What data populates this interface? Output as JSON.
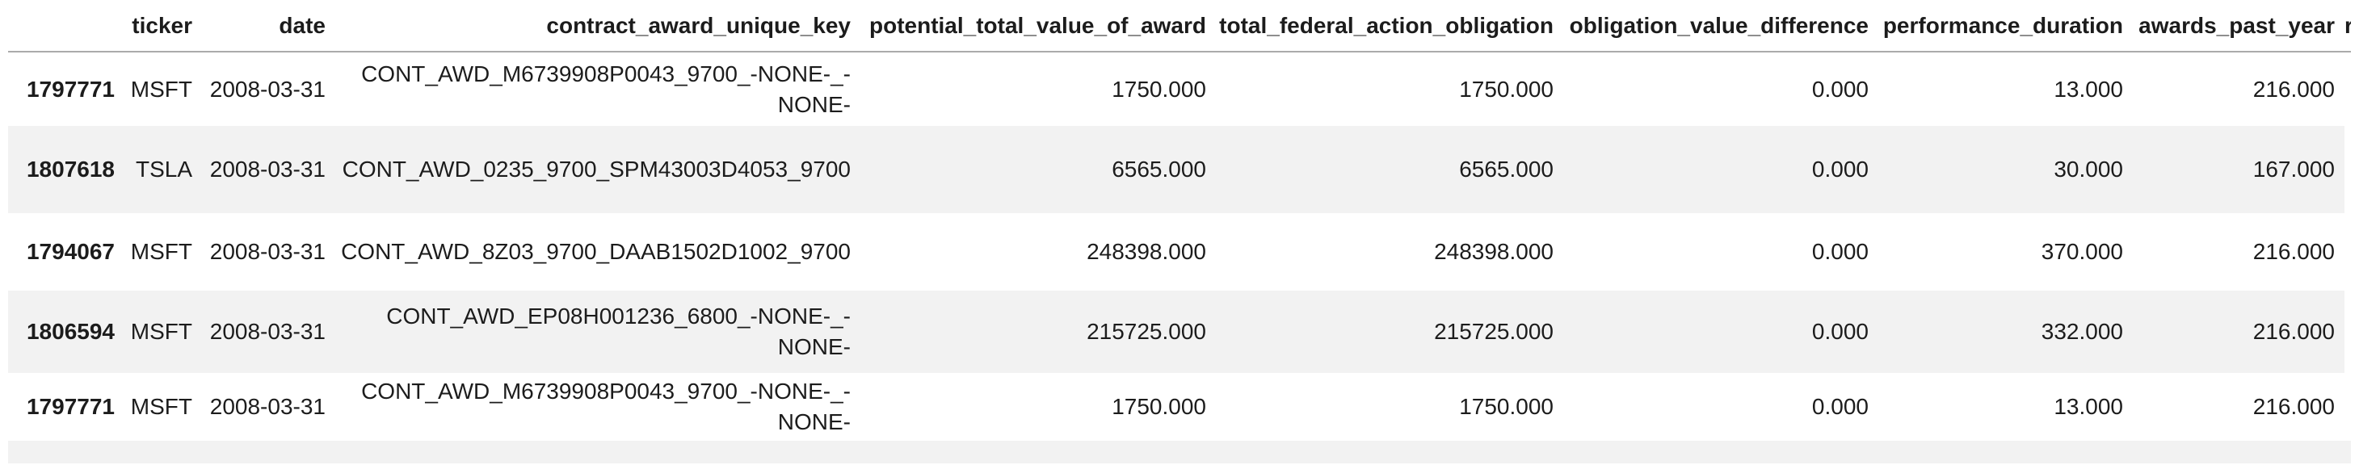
{
  "colors": {
    "background": "#ffffff",
    "stripe": "#f2f2f2",
    "header_border": "#ababab",
    "text": "#1c1c1c"
  },
  "table": {
    "columns": [
      {
        "id": "index",
        "label": ""
      },
      {
        "id": "ticker",
        "label": "ticker"
      },
      {
        "id": "date",
        "label": "date"
      },
      {
        "id": "contract_award_unique_key",
        "label": "contract_award_unique_key"
      },
      {
        "id": "potential_total_value_of_award",
        "label": "potential_total_value_of_award"
      },
      {
        "id": "total_federal_action_obligation",
        "label": "total_federal_action_obligation"
      },
      {
        "id": "obligation_value_difference",
        "label": "obligation_value_difference"
      },
      {
        "id": "performance_duration",
        "label": "performance_duration"
      },
      {
        "id": "awards_past_year",
        "label": "awards_past_year"
      }
    ],
    "next_column_clipped_fragment": "r",
    "rows": [
      {
        "index": "1797771",
        "ticker": "MSFT",
        "date": "2008-03-31",
        "contract_award_unique_key": "CONT_AWD_M6739908P0043_9700_-NONE-_-NONE-",
        "potential_total_value_of_award": "1750.000",
        "total_federal_action_obligation": "1750.000",
        "obligation_value_difference": "0.000",
        "performance_duration": "13.000",
        "awards_past_year": "216.000"
      },
      {
        "index": "1807618",
        "ticker": "TSLA",
        "date": "2008-03-31",
        "contract_award_unique_key": "CONT_AWD_0235_9700_SPM43003D4053_9700",
        "potential_total_value_of_award": "6565.000",
        "total_federal_action_obligation": "6565.000",
        "obligation_value_difference": "0.000",
        "performance_duration": "30.000",
        "awards_past_year": "167.000"
      },
      {
        "index": "1794067",
        "ticker": "MSFT",
        "date": "2008-03-31",
        "contract_award_unique_key": "CONT_AWD_8Z03_9700_DAAB1502D1002_9700",
        "potential_total_value_of_award": "248398.000",
        "total_federal_action_obligation": "248398.000",
        "obligation_value_difference": "0.000",
        "performance_duration": "370.000",
        "awards_past_year": "216.000"
      },
      {
        "index": "1806594",
        "ticker": "MSFT",
        "date": "2008-03-31",
        "contract_award_unique_key": "CONT_AWD_EP08H001236_6800_-NONE-_-NONE-",
        "potential_total_value_of_award": "215725.000",
        "total_federal_action_obligation": "215725.000",
        "obligation_value_difference": "0.000",
        "performance_duration": "332.000",
        "awards_past_year": "216.000"
      },
      {
        "index": "1797771",
        "ticker": "MSFT",
        "date": "2008-03-31",
        "contract_award_unique_key": "CONT_AWD_M6739908P0043_9700_-NONE-_-NONE-",
        "potential_total_value_of_award": "1750.000",
        "total_federal_action_obligation": "1750.000",
        "obligation_value_difference": "0.000",
        "performance_duration": "13.000",
        "awards_past_year": "216.000"
      }
    ]
  }
}
